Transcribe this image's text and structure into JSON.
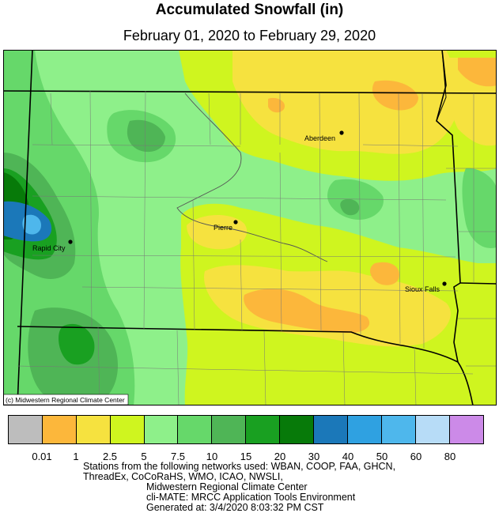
{
  "title": "Accumulated Snowfall (in)",
  "subtitle": "February 01, 2020 to February 29, 2020",
  "copyright": "(c) Midwestern Regional Climate Center",
  "cities": [
    {
      "name": "Aberdeen"
    },
    {
      "name": "Pierre"
    },
    {
      "name": "Rapid City"
    },
    {
      "name": "Sioux Falls"
    }
  ],
  "legend": {
    "colors": [
      "#bdbdbd",
      "#fcb73b",
      "#f6e23f",
      "#cff51f",
      "#8ef08a",
      "#66d86a",
      "#4fb556",
      "#19a021",
      "#077a09",
      "#1b78b9",
      "#2fa1e1",
      "#4eb7ec",
      "#b7dcf7",
      "#cc8ae8"
    ],
    "labels": [
      "0.01",
      "1",
      "2.5",
      "5",
      "7.5",
      "10",
      "15",
      "20",
      "30",
      "40",
      "50",
      "60",
      "80"
    ]
  },
  "footer": {
    "line1": "Stations from the following networks used: WBAN, COOP, FAA, GHCN,",
    "line2": "ThreadEx, CoCoRaHS, WMO, ICAO, NWSLI,",
    "line3": "Midwestern Regional Climate Center",
    "line4": "cli-MATE: MRCC Application Tools Environment",
    "line5": "Generated at: 3/4/2020 8:03:32 PM CST"
  }
}
